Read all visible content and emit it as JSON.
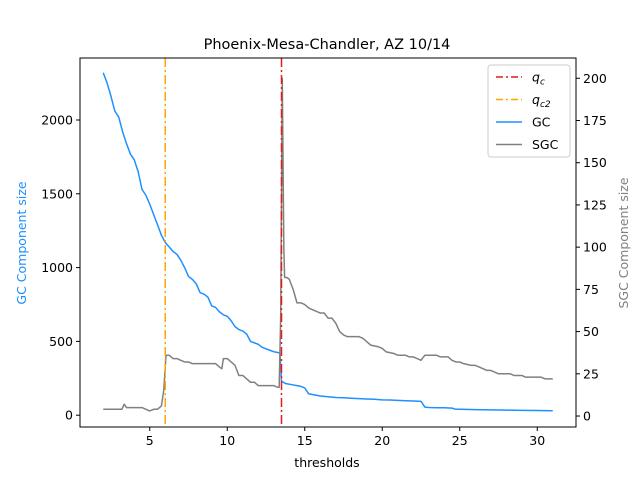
{
  "chart_data": {
    "type": "line",
    "title": "Phoenix-Mesa-Chandler, AZ 10/14",
    "xlabel": "thresholds",
    "ylabel_left": "GC Component size",
    "ylabel_right": "SGC Component size",
    "xlim": [
      0.5,
      32.5
    ],
    "ylim_left": [
      -80,
      2420
    ],
    "ylim_right": [
      -6.5,
      212
    ],
    "x_ticks": [
      5,
      10,
      15,
      20,
      25,
      30
    ],
    "y_ticks_left": [
      0,
      500,
      1000,
      1500,
      2000
    ],
    "y_ticks_right": [
      0,
      25,
      50,
      75,
      100,
      125,
      150,
      175,
      200
    ],
    "grid": false,
    "legend_position": "top-right",
    "colors": {
      "gc": "#1e90ff",
      "sgc": "#808080",
      "qc": "#e41a1c",
      "qc2": "#ffa500",
      "left_label": "#1e90ff",
      "right_label": "#808080"
    },
    "vlines": [
      {
        "name": "q_c",
        "x": 13.5,
        "color": "#e41a1c"
      },
      {
        "name": "q_c2",
        "x": 6.0,
        "color": "#ffa500"
      }
    ],
    "legend": [
      {
        "key": "qc",
        "label_main": "q",
        "label_sub": "c",
        "style": "dashdot",
        "color": "#e41a1c"
      },
      {
        "key": "qc2",
        "label_main": "q",
        "label_sub": "c2",
        "style": "dashdot",
        "color": "#ffa500"
      },
      {
        "key": "gc",
        "label_main": "GC",
        "label_sub": "",
        "style": "solid",
        "color": "#1e90ff"
      },
      {
        "key": "sgc",
        "label_main": "SGC",
        "label_sub": "",
        "style": "solid",
        "color": "#808080"
      }
    ],
    "series": [
      {
        "name": "GC",
        "axis": "left",
        "color": "#1e90ff",
        "points": [
          [
            2.0,
            2320
          ],
          [
            2.25,
            2250
          ],
          [
            2.5,
            2160
          ],
          [
            2.75,
            2060
          ],
          [
            3.0,
            2020
          ],
          [
            3.25,
            1920
          ],
          [
            3.5,
            1840
          ],
          [
            3.75,
            1770
          ],
          [
            4.0,
            1730
          ],
          [
            4.25,
            1650
          ],
          [
            4.5,
            1530
          ],
          [
            4.75,
            1490
          ],
          [
            5.0,
            1430
          ],
          [
            5.25,
            1360
          ],
          [
            5.5,
            1290
          ],
          [
            5.75,
            1220
          ],
          [
            6.0,
            1170
          ],
          [
            6.25,
            1140
          ],
          [
            6.5,
            1110
          ],
          [
            6.75,
            1090
          ],
          [
            7.0,
            1050
          ],
          [
            7.25,
            1000
          ],
          [
            7.5,
            940
          ],
          [
            7.75,
            920
          ],
          [
            8.0,
            890
          ],
          [
            8.25,
            830
          ],
          [
            8.5,
            820
          ],
          [
            8.75,
            800
          ],
          [
            9.0,
            740
          ],
          [
            9.25,
            730
          ],
          [
            9.5,
            700
          ],
          [
            9.75,
            680
          ],
          [
            10.0,
            670
          ],
          [
            10.25,
            640
          ],
          [
            10.5,
            600
          ],
          [
            10.75,
            580
          ],
          [
            11.0,
            570
          ],
          [
            11.25,
            550
          ],
          [
            11.5,
            500
          ],
          [
            11.75,
            490
          ],
          [
            12.0,
            480
          ],
          [
            12.25,
            460
          ],
          [
            12.5,
            450
          ],
          [
            12.75,
            440
          ],
          [
            13.0,
            430
          ],
          [
            13.25,
            425
          ],
          [
            13.4,
            420
          ],
          [
            13.5,
            230
          ],
          [
            13.75,
            215
          ],
          [
            14.0,
            210
          ],
          [
            14.25,
            205
          ],
          [
            14.5,
            200
          ],
          [
            14.75,
            195
          ],
          [
            15.0,
            185
          ],
          [
            15.25,
            145
          ],
          [
            15.5,
            140
          ],
          [
            15.75,
            135
          ],
          [
            16.0,
            130
          ],
          [
            16.5,
            125
          ],
          [
            17.0,
            120
          ],
          [
            17.5,
            118
          ],
          [
            18.0,
            115
          ],
          [
            18.5,
            112
          ],
          [
            19.0,
            110
          ],
          [
            19.5,
            108
          ],
          [
            20.0,
            104
          ],
          [
            20.5,
            103
          ],
          [
            21.0,
            100
          ],
          [
            21.5,
            98
          ],
          [
            22.0,
            96
          ],
          [
            22.5,
            94
          ],
          [
            22.75,
            55
          ],
          [
            23.0,
            52
          ],
          [
            23.5,
            50
          ],
          [
            24.0,
            50
          ],
          [
            24.5,
            48
          ],
          [
            24.75,
            40
          ],
          [
            25.0,
            40
          ],
          [
            26.0,
            38
          ],
          [
            27.0,
            36
          ],
          [
            28.0,
            34
          ],
          [
            29.0,
            33
          ],
          [
            30.0,
            32
          ],
          [
            31.0,
            30
          ]
        ]
      },
      {
        "name": "SGC",
        "axis": "right",
        "color": "#808080",
        "points": [
          [
            2.0,
            4
          ],
          [
            2.5,
            4
          ],
          [
            3.0,
            4
          ],
          [
            3.2,
            4
          ],
          [
            3.35,
            7
          ],
          [
            3.5,
            5
          ],
          [
            4.0,
            5
          ],
          [
            4.5,
            5
          ],
          [
            4.75,
            4
          ],
          [
            5.0,
            3
          ],
          [
            5.25,
            4
          ],
          [
            5.5,
            4
          ],
          [
            5.75,
            6
          ],
          [
            5.9,
            15
          ],
          [
            6.05,
            36
          ],
          [
            6.25,
            36
          ],
          [
            6.5,
            34
          ],
          [
            6.75,
            34
          ],
          [
            7.0,
            33
          ],
          [
            7.25,
            32
          ],
          [
            7.5,
            32
          ],
          [
            7.75,
            31
          ],
          [
            8.0,
            31
          ],
          [
            8.5,
            31
          ],
          [
            9.0,
            31
          ],
          [
            9.25,
            31
          ],
          [
            9.5,
            29
          ],
          [
            9.65,
            28
          ],
          [
            9.75,
            34
          ],
          [
            10.0,
            34
          ],
          [
            10.25,
            32
          ],
          [
            10.5,
            30
          ],
          [
            10.75,
            24
          ],
          [
            11.0,
            24
          ],
          [
            11.25,
            22
          ],
          [
            11.5,
            20
          ],
          [
            11.75,
            20
          ],
          [
            12.0,
            18
          ],
          [
            12.5,
            18
          ],
          [
            13.0,
            18
          ],
          [
            13.25,
            17
          ],
          [
            13.35,
            17
          ],
          [
            13.45,
            60
          ],
          [
            13.55,
            200
          ],
          [
            13.65,
            100
          ],
          [
            13.7,
            82
          ],
          [
            13.85,
            82
          ],
          [
            14.0,
            81
          ],
          [
            14.25,
            75
          ],
          [
            14.5,
            67
          ],
          [
            14.75,
            67
          ],
          [
            15.0,
            66
          ],
          [
            15.25,
            64
          ],
          [
            15.5,
            63
          ],
          [
            16.0,
            61
          ],
          [
            16.25,
            61
          ],
          [
            16.5,
            58
          ],
          [
            16.75,
            58
          ],
          [
            17.0,
            55
          ],
          [
            17.25,
            50
          ],
          [
            17.5,
            48
          ],
          [
            17.75,
            47
          ],
          [
            18.0,
            47
          ],
          [
            18.5,
            47
          ],
          [
            18.75,
            46
          ],
          [
            19.0,
            44
          ],
          [
            19.25,
            42
          ],
          [
            19.75,
            41
          ],
          [
            20.0,
            40
          ],
          [
            20.25,
            38
          ],
          [
            20.75,
            37
          ],
          [
            21.0,
            36
          ],
          [
            21.5,
            36
          ],
          [
            21.75,
            35
          ],
          [
            22.0,
            35
          ],
          [
            22.25,
            34
          ],
          [
            22.5,
            33
          ],
          [
            22.75,
            36
          ],
          [
            23.0,
            36
          ],
          [
            23.5,
            36
          ],
          [
            23.75,
            35
          ],
          [
            24.0,
            35
          ],
          [
            24.25,
            35
          ],
          [
            24.5,
            33
          ],
          [
            24.75,
            32
          ],
          [
            25.0,
            32
          ],
          [
            25.25,
            31
          ],
          [
            25.75,
            30
          ],
          [
            26.0,
            30
          ],
          [
            26.5,
            28
          ],
          [
            26.75,
            27
          ],
          [
            27.0,
            27
          ],
          [
            27.5,
            25
          ],
          [
            27.75,
            25
          ],
          [
            28.25,
            25
          ],
          [
            28.5,
            24
          ],
          [
            29.0,
            24
          ],
          [
            29.25,
            23
          ],
          [
            29.5,
            23
          ],
          [
            30.0,
            23
          ],
          [
            30.25,
            23
          ],
          [
            30.5,
            22
          ],
          [
            31.0,
            22
          ]
        ]
      }
    ]
  }
}
